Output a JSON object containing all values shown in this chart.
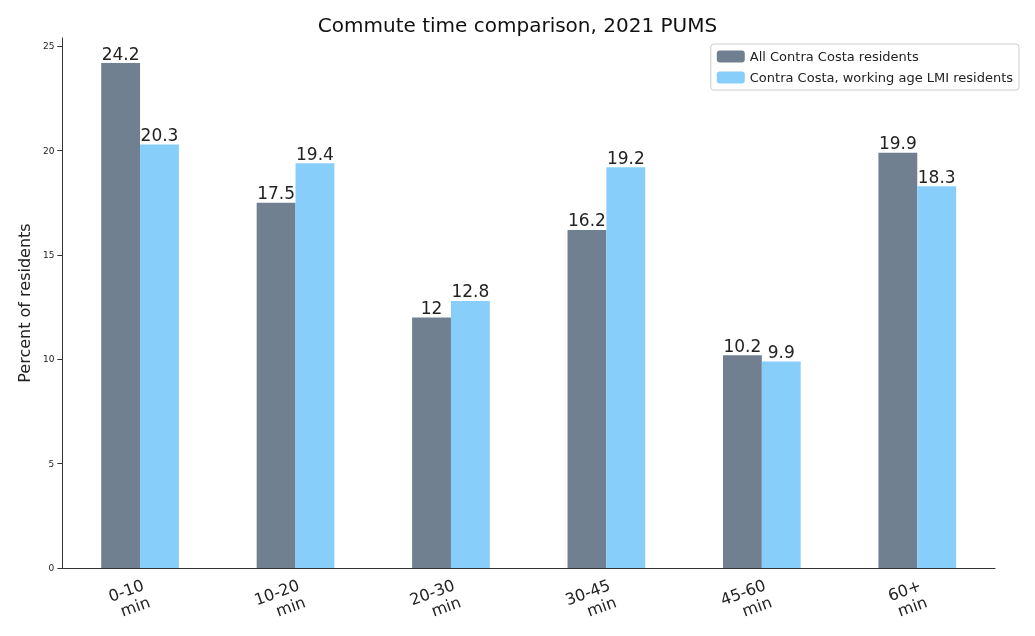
{
  "chart_data": {
    "type": "bar",
    "title": "Commute time comparison, 2021 PUMS",
    "ylabel": "Percent of residents",
    "categories": [
      "0-10 min",
      "10-20 min",
      "20-30 min",
      "30-45 min",
      "45-60 min",
      "60+ min"
    ],
    "series": [
      {
        "name": "All Contra Costa residents",
        "color": "#708090",
        "values": [
          24.2,
          17.5,
          12,
          16.2,
          10.2,
          19.9
        ]
      },
      {
        "name": "Contra Costa, working age LMI residents",
        "color": "#87cefa",
        "values": [
          20.3,
          19.4,
          12.8,
          19.2,
          9.9,
          18.3
        ]
      }
    ],
    "ylim": [
      0,
      25.4
    ],
    "yticks": [
      0,
      5,
      10,
      15,
      20,
      25
    ],
    "grid": false,
    "legend": "top right",
    "data_labels": true
  }
}
